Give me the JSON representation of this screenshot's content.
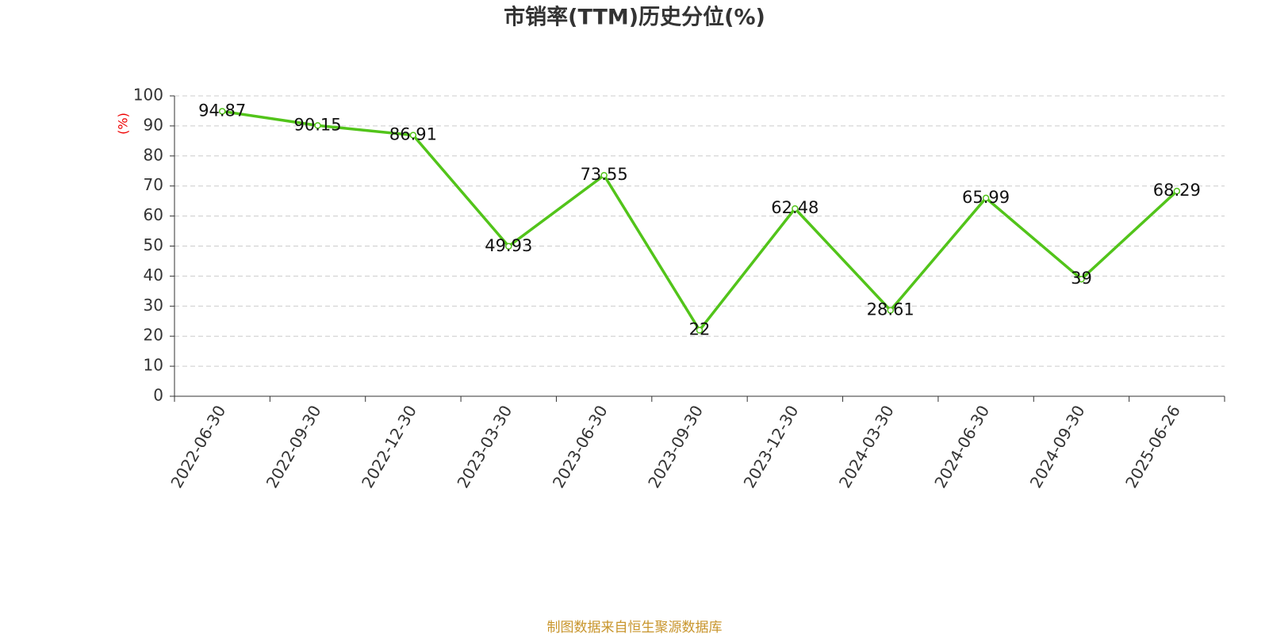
{
  "chart_data": {
    "type": "line",
    "title": "市销率(TTM)历史分位(%)",
    "y_label": "(%)",
    "categories": [
      "2022-06-30",
      "2022-09-30",
      "2022-12-30",
      "2023-03-30",
      "2023-06-30",
      "2023-09-30",
      "2023-12-30",
      "2024-03-30",
      "2024-06-30",
      "2024-09-30",
      "2025-06-26"
    ],
    "values": [
      94.87,
      90.15,
      86.91,
      49.93,
      73.55,
      22,
      62.48,
      28.61,
      65.99,
      39,
      68.29
    ],
    "color": "#52c41a",
    "ylim": [
      0,
      100
    ],
    "yticks": [
      0,
      10,
      20,
      30,
      40,
      50,
      60,
      70,
      80,
      90,
      100
    ],
    "grid": true,
    "source": "制图数据来自恒生聚源数据库"
  }
}
